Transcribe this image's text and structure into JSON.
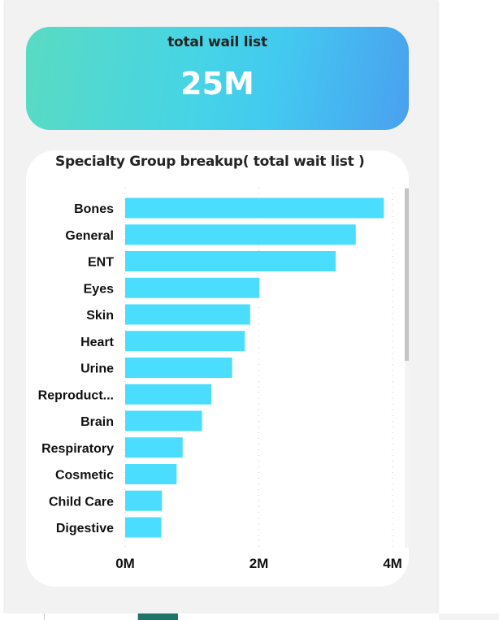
{
  "kpi": {
    "title": "total wail list",
    "value": "25M",
    "gradient_colors": [
      "#59dbc2",
      "#46d4e6",
      "#4aa0ef"
    ]
  },
  "colors": {
    "bar": "#4addfd",
    "panel_background": "#f2f2f2",
    "active_tab": "#1e7466"
  },
  "chart_data": {
    "type": "bar",
    "orientation": "horizontal",
    "title": "Specialty Group breakup( total wait list )",
    "categories": [
      "Bones",
      "General",
      "ENT",
      "Eyes",
      "Skin",
      "Heart",
      "Urine",
      "Reproduct...",
      "Brain",
      "Respiratory",
      "Cosmetic",
      "Child Care",
      "Digestive"
    ],
    "values": [
      3870000,
      3450000,
      3150000,
      2010000,
      1870000,
      1790000,
      1600000,
      1290000,
      1150000,
      860000,
      770000,
      550000,
      540000
    ],
    "xlabel": "",
    "ylabel": "",
    "xlim": [
      0,
      4000000
    ],
    "x_ticks": [
      0,
      2000000,
      4000000
    ],
    "x_tick_labels": [
      "0M",
      "2M",
      "4M"
    ],
    "grid": "vertical dotted",
    "legend": "none",
    "scrollbar": true
  }
}
